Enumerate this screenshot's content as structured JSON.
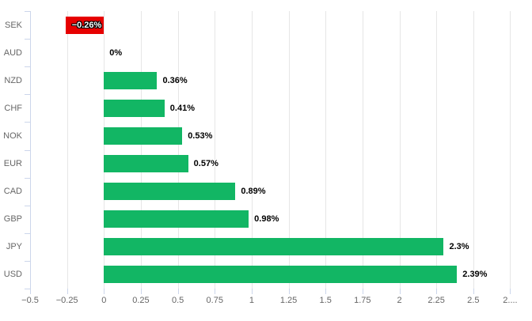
{
  "chart_data": {
    "type": "bar",
    "orientation": "horizontal",
    "title": "",
    "xlabel": "",
    "ylabel": "",
    "grid": true,
    "legend": "none",
    "categories": [
      "SEK",
      "AUD",
      "NZD",
      "CHF",
      "NOK",
      "EUR",
      "CAD",
      "GBP",
      "JPY",
      "USD"
    ],
    "values": [
      -0.26,
      0,
      0.36,
      0.41,
      0.53,
      0.57,
      0.89,
      0.98,
      2.3,
      2.39
    ],
    "data_labels": [
      "−0.26%",
      "0%",
      "0.36%",
      "0.41%",
      "0.53%",
      "0.57%",
      "0.89%",
      "0.98%",
      "2.3%",
      "2.39%"
    ],
    "x_ticks": [
      -0.5,
      -0.25,
      0,
      0.25,
      0.5,
      0.75,
      1,
      1.25,
      1.5,
      1.75,
      2,
      2.25,
      2.5,
      2.75
    ],
    "x_tick_labels": [
      "−0.5",
      "−0.25",
      "0",
      "0.25",
      "0.5",
      "0.75",
      "1",
      "1.25",
      "1.5",
      "1.75",
      "2",
      "2.25",
      "2.5",
      "2...."
    ],
    "xlim": [
      -0.5,
      2.79
    ],
    "colors": {
      "positive_bar": "#12b664",
      "negative_bar": "#e60000",
      "gridline": "#e6e6e6",
      "axis": "#ccd6eb",
      "tick_label": "#666666",
      "category_label": "#666666",
      "data_label_positive": "#000000",
      "data_label_negative": "#ffffff",
      "background": "#ffffff"
    }
  }
}
